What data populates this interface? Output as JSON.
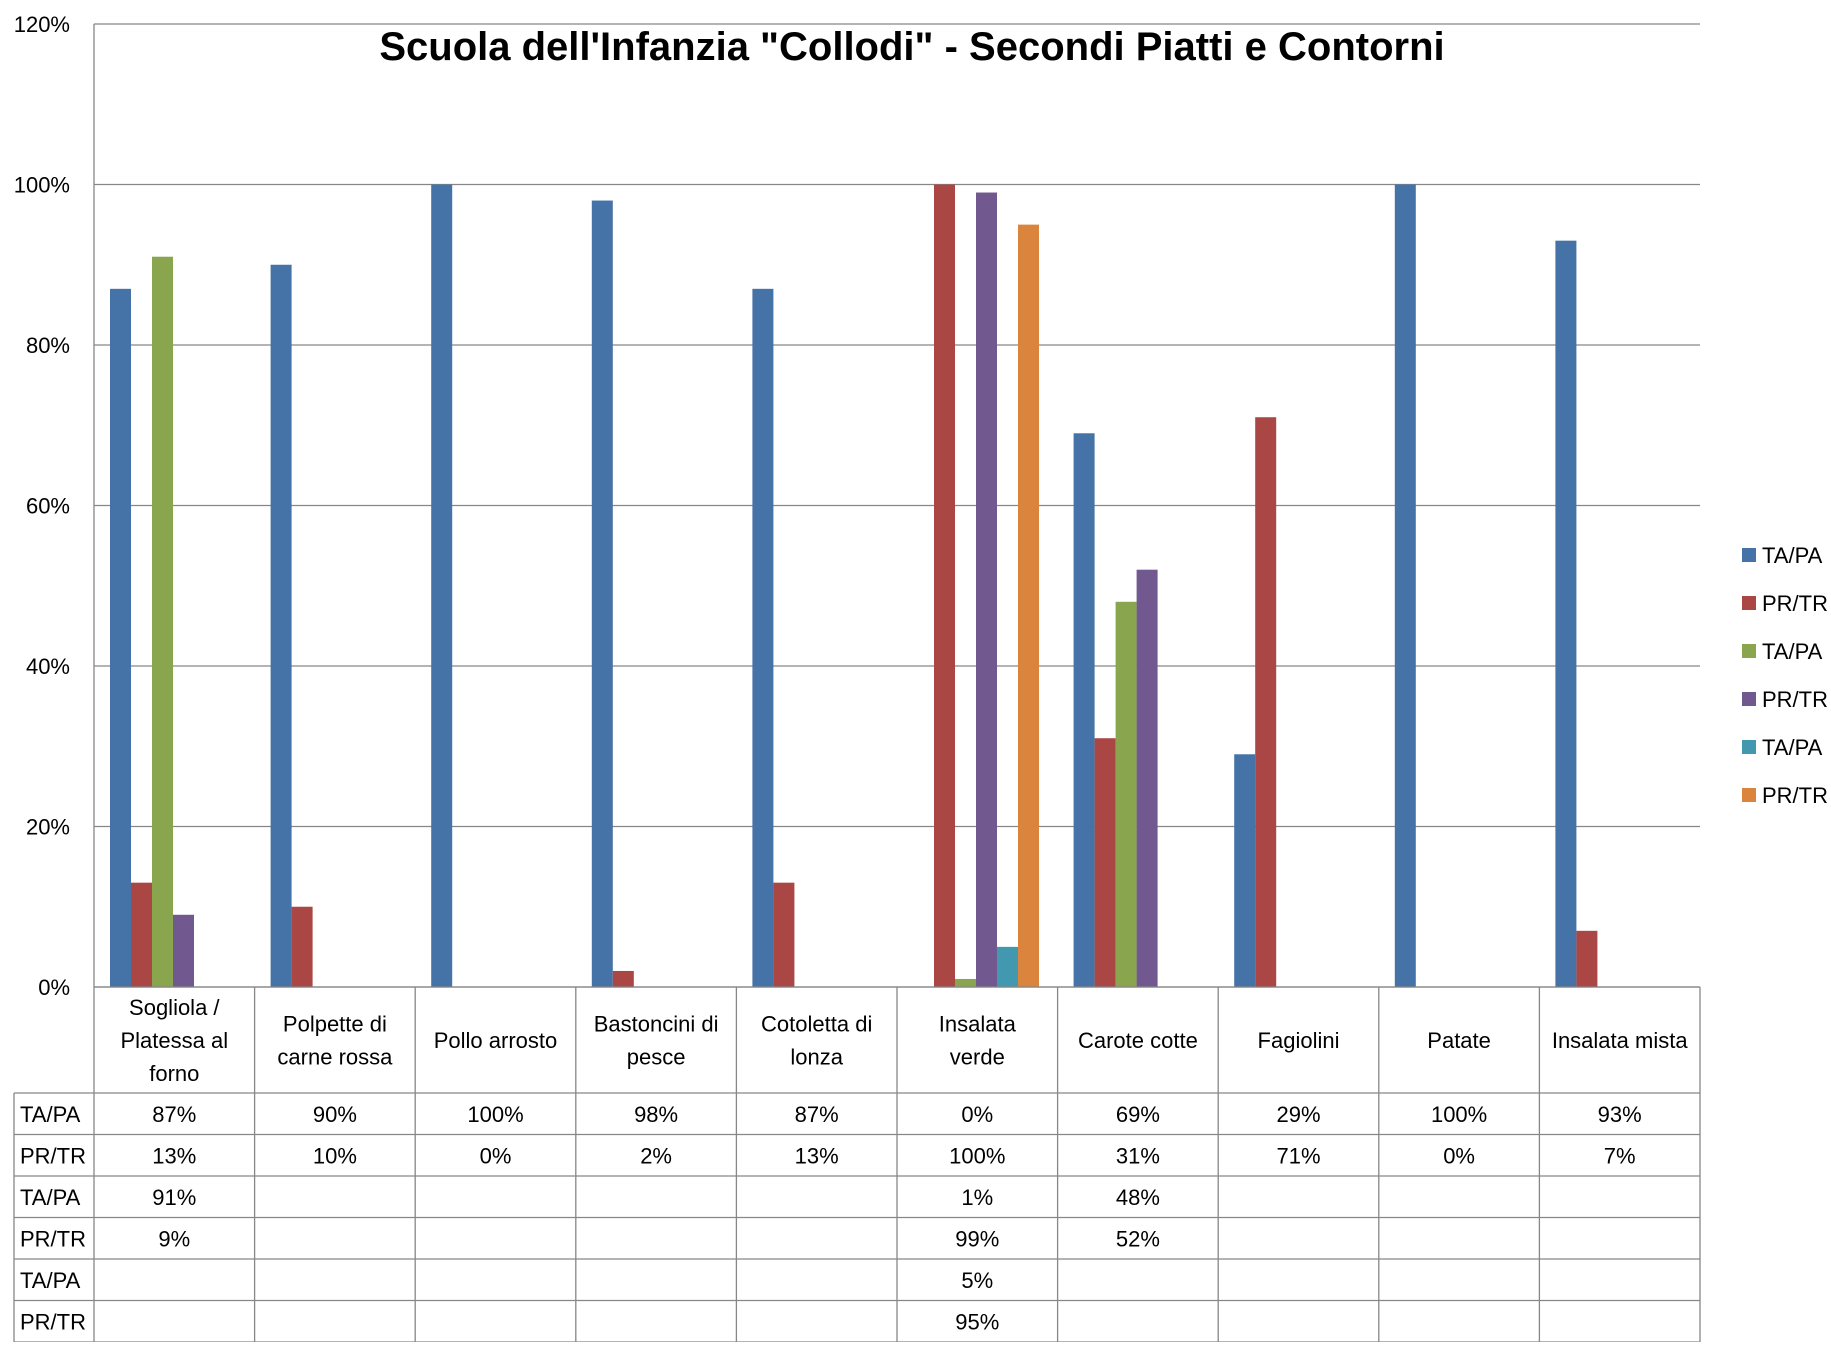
{
  "chart_data": {
    "type": "bar",
    "title": "Scuola dell'Infanzia \"Collodi\" - Secondi Piatti e Contorni",
    "xlabel": "",
    "ylabel": "",
    "ylim": [
      0,
      1.2
    ],
    "y_ticks": [
      0,
      0.2,
      0.4,
      0.6,
      0.8,
      1.0,
      1.2
    ],
    "y_tick_labels": [
      "0%",
      "20%",
      "40%",
      "60%",
      "80%",
      "100%",
      "120%"
    ],
    "grid": true,
    "legend_position": "right",
    "data_table": true,
    "categories": [
      "Sogliola / Platessa al forno",
      "Polpette di carne rossa",
      "Pollo arrosto",
      "Bastoncini di pesce",
      "Cotoletta di lonza",
      "Insalata verde",
      "Carote cotte",
      "Fagiolini",
      "Patate",
      "Insalata mista"
    ],
    "category_lines": [
      [
        "Sogliola /",
        "Platessa al",
        "forno"
      ],
      [
        "Polpette di",
        "carne rossa"
      ],
      [
        "Pollo arrosto"
      ],
      [
        "Bastoncini di",
        "pesce"
      ],
      [
        "Cotoletta di",
        "lonza"
      ],
      [
        "Insalata",
        "verde"
      ],
      [
        "Carote cotte"
      ],
      [
        "Fagiolini"
      ],
      [
        "Patate"
      ],
      [
        "Insalata mista"
      ]
    ],
    "series": [
      {
        "name": "TA/PA",
        "color": "#4572A7",
        "values": [
          0.87,
          0.9,
          1.0,
          0.98,
          0.87,
          0.0,
          0.69,
          0.29,
          1.0,
          0.93
        ],
        "labels": [
          "87%",
          "90%",
          "100%",
          "98%",
          "87%",
          "0%",
          "69%",
          "29%",
          "100%",
          "93%"
        ]
      },
      {
        "name": "PR/TR",
        "color": "#AA4643",
        "values": [
          0.13,
          0.1,
          0.0,
          0.02,
          0.13,
          1.0,
          0.31,
          0.71,
          0.0,
          0.07
        ],
        "labels": [
          "13%",
          "10%",
          "0%",
          "2%",
          "13%",
          "100%",
          "31%",
          "71%",
          "0%",
          "7%"
        ]
      },
      {
        "name": "TA/PA",
        "color": "#89A54E",
        "values": [
          0.91,
          null,
          null,
          null,
          null,
          0.01,
          0.48,
          null,
          null,
          null
        ],
        "labels": [
          "91%",
          "",
          "",
          "",
          "",
          "1%",
          "48%",
          "",
          "",
          ""
        ]
      },
      {
        "name": "PR/TR",
        "color": "#71588F",
        "values": [
          0.09,
          null,
          null,
          null,
          null,
          0.99,
          0.52,
          null,
          null,
          null
        ],
        "labels": [
          "9%",
          "",
          "",
          "",
          "",
          "99%",
          "52%",
          "",
          "",
          ""
        ]
      },
      {
        "name": "TA/PA",
        "color": "#4198AF",
        "values": [
          null,
          null,
          null,
          null,
          null,
          0.05,
          null,
          null,
          null,
          null
        ],
        "labels": [
          "",
          "",
          "",
          "",
          "",
          "5%",
          "",
          "",
          "",
          ""
        ]
      },
      {
        "name": "PR/TR",
        "color": "#DB843D",
        "values": [
          null,
          null,
          null,
          null,
          null,
          0.95,
          null,
          null,
          null,
          null
        ],
        "labels": [
          "",
          "",
          "",
          "",
          "",
          "95%",
          "",
          "",
          "",
          ""
        ]
      }
    ]
  }
}
